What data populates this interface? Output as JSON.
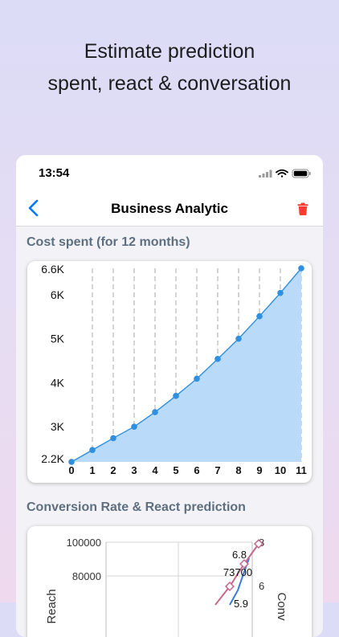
{
  "promo": {
    "line1": "Estimate prediction",
    "line2": "spent, react & conversation"
  },
  "status_bar": {
    "time": "13:54"
  },
  "nav": {
    "title": "Business Analytic",
    "back_icon": "chevron-left-icon",
    "delete_icon": "trash-icon"
  },
  "colors": {
    "accent": "#007aff",
    "delete": "#ff3b30",
    "fill": "#b9daf8",
    "line": "#2f8fe0"
  },
  "cost_section": {
    "title": "Cost spent (for 12 months)",
    "chart_data": {
      "type": "area",
      "x": [
        0,
        1,
        2,
        3,
        4,
        5,
        6,
        7,
        8,
        9,
        10,
        11
      ],
      "values": [
        2200,
        2470,
        2740,
        3000,
        3330,
        3700,
        4090,
        4540,
        5000,
        5510,
        6040,
        6600
      ],
      "ytick_labels": [
        "2.2K",
        "3K",
        "4K",
        "5K",
        "6K",
        "6.6K"
      ],
      "ytick_values": [
        2200,
        3000,
        4000,
        5000,
        6000,
        6600
      ],
      "ylim": [
        2200,
        6600
      ],
      "grid": "vertical-dashed"
    }
  },
  "conversion_section": {
    "title": "Conversion Rate & React prediction",
    "chart_data": {
      "type": "line",
      "left_axis": {
        "label": "Reach",
        "tick_labels": [
          "100000",
          "80000"
        ],
        "tick_values": [
          100000,
          80000
        ]
      },
      "right_axis": {
        "label": "Conv",
        "tick_labels": [
          "8",
          "6"
        ],
        "tick_values": [
          8,
          6
        ]
      },
      "data_labels": [
        "6.8",
        "73700",
        "5.9"
      ]
    }
  }
}
